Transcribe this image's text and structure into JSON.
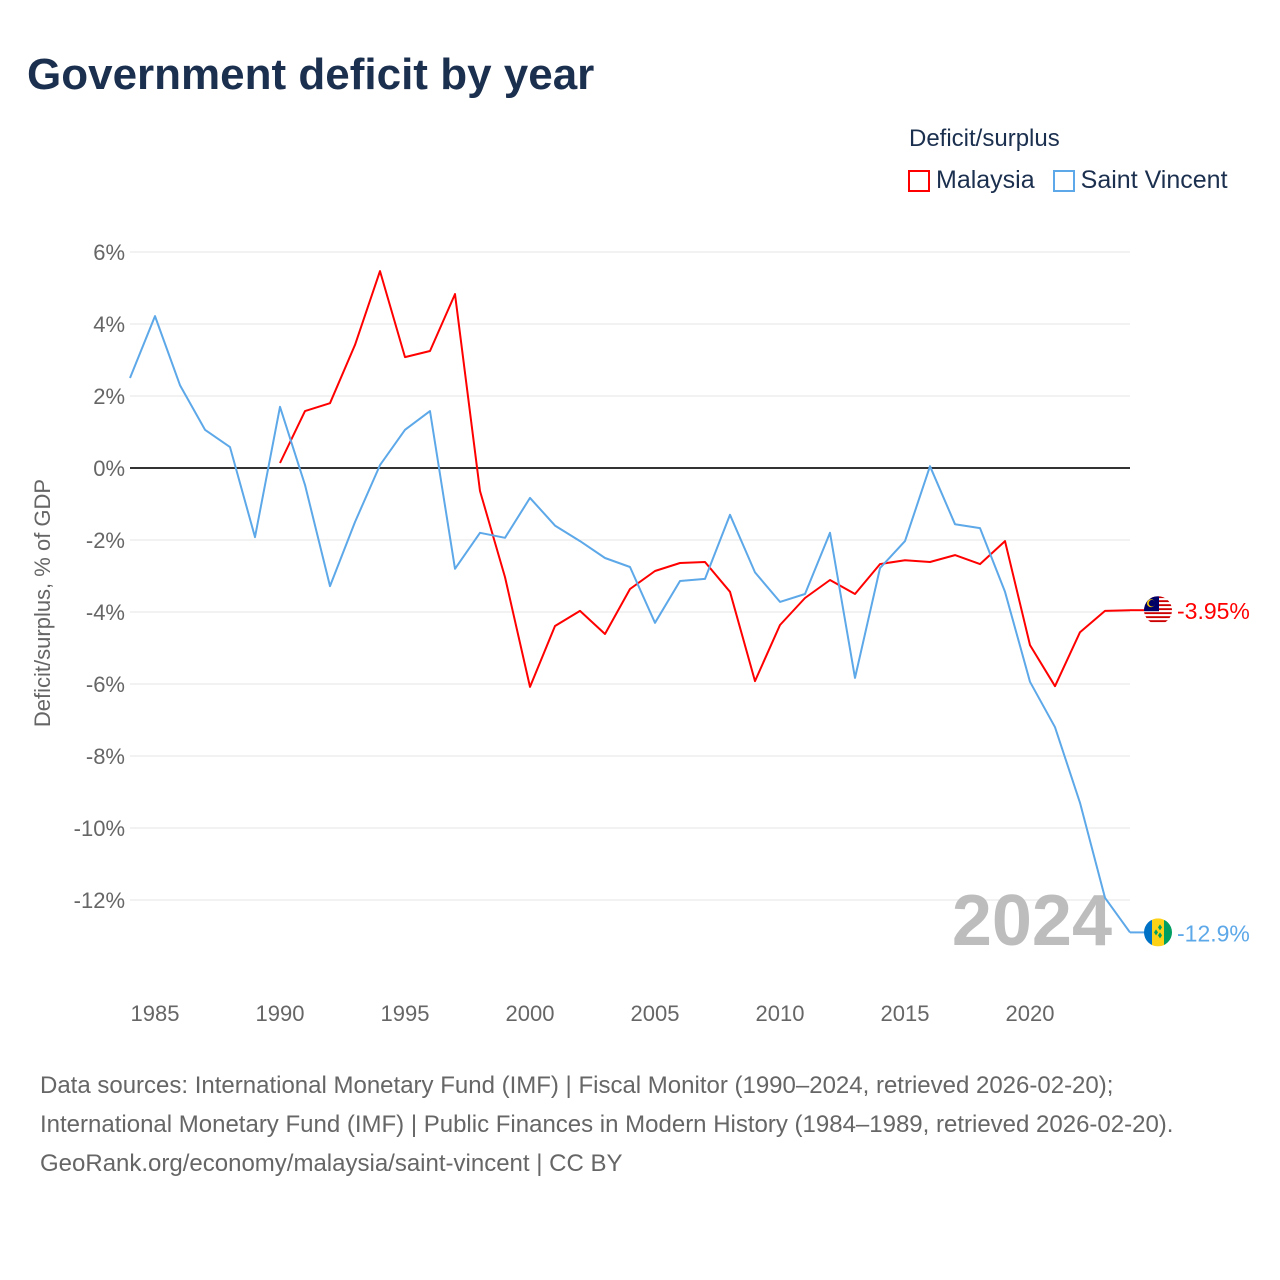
{
  "title": "Government deficit by year",
  "legend": {
    "title": "Deficit/surplus",
    "items": [
      {
        "label": "Malaysia",
        "color": "#ff0000"
      },
      {
        "label": "Saint Vincent",
        "color": "#5da8e8"
      }
    ]
  },
  "footer": {
    "sources": "Data sources: International Monetary Fund (IMF) | Fiscal Monitor (1990–2024, retrieved 2026-02-20); International Monetary Fund (IMF) | Public Finances in Modern History (1984–1989, retrieved 2026-02-20).",
    "credit": "GeoRank.org/economy/malaysia/saint-vincent | CC BY"
  },
  "chart_data": {
    "type": "line",
    "title": "Government deficit by year",
    "xlabel": "",
    "ylabel": "Deficit/surplus, % of GDP",
    "xlim": [
      1984,
      2024
    ],
    "ylim": [
      -14,
      7
    ],
    "x_ticks": [
      1985,
      1990,
      1995,
      2000,
      2005,
      2010,
      2015,
      2020
    ],
    "y_ticks": [
      6,
      4,
      2,
      0,
      -2,
      -4,
      -6,
      -8,
      -10,
      -12
    ],
    "y_tick_labels": [
      "6%",
      "4%",
      "2%",
      "0%",
      "-2%",
      "-4%",
      "-6%",
      "-8%",
      "-10%",
      "-12%"
    ],
    "year_watermark": "2024",
    "series": [
      {
        "name": "Malaysia",
        "color": "#ff0000",
        "end_label": "-3.95%",
        "start_year": 1990,
        "values": [
          0.14,
          1.58,
          1.8,
          3.42,
          5.47,
          3.08,
          3.25,
          4.83,
          -0.64,
          -3.03,
          -6.08,
          -4.39,
          -3.97,
          -4.61,
          -3.36,
          -2.86,
          -2.64,
          -2.61,
          -3.44,
          -5.92,
          -4.36,
          -3.61,
          -3.11,
          -3.5,
          -2.67,
          -2.56,
          -2.61,
          -2.42,
          -2.67,
          -2.03,
          -4.92,
          -6.06,
          -4.56,
          -3.97,
          -3.95
        ]
      },
      {
        "name": "Saint Vincent",
        "color": "#5da8e8",
        "end_label": "-12.9%",
        "start_year": 1984,
        "values": [
          2.5,
          4.22,
          2.3,
          1.06,
          0.58,
          -1.92,
          1.7,
          -0.47,
          -3.28,
          -1.5,
          0.08,
          1.06,
          1.58,
          -2.8,
          -1.8,
          -1.94,
          -0.83,
          -1.6,
          -2.03,
          -2.5,
          -2.75,
          -4.3,
          -3.14,
          -3.08,
          -1.3,
          -2.9,
          -3.72,
          -3.5,
          -1.8,
          -5.83,
          -2.78,
          -2.03,
          0.05,
          -1.56,
          -1.67,
          -3.44,
          -5.94,
          -7.2,
          -9.3,
          -11.94,
          -12.9
        ]
      }
    ]
  }
}
